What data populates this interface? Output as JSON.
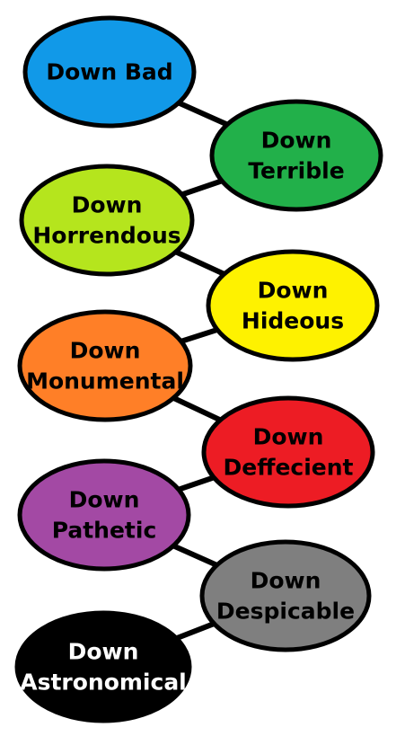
{
  "nodes": [
    {
      "id": "down-bad",
      "lines": [
        "Down Bad"
      ],
      "fill": "#1199e8",
      "text_color": "#000000"
    },
    {
      "id": "down-terrible",
      "lines": [
        "Down",
        "Terrible"
      ],
      "fill": "#22b04a",
      "text_color": "#000000"
    },
    {
      "id": "down-horrendous",
      "lines": [
        "Down",
        "Horrendous"
      ],
      "fill": "#b5e51d",
      "text_color": "#000000"
    },
    {
      "id": "down-hideous",
      "lines": [
        "Down",
        "Hideous"
      ],
      "fill": "#fef200",
      "text_color": "#000000"
    },
    {
      "id": "down-monumental",
      "lines": [
        "Down",
        "Monumental"
      ],
      "fill": "#ff7f27",
      "text_color": "#000000"
    },
    {
      "id": "down-deffecient",
      "lines": [
        "Down",
        "Deffecient"
      ],
      "fill": "#ed1c24",
      "text_color": "#000000"
    },
    {
      "id": "down-pathetic",
      "lines": [
        "Down",
        "Pathetic"
      ],
      "fill": "#a349a4",
      "text_color": "#000000"
    },
    {
      "id": "down-despicable",
      "lines": [
        "Down",
        "Despicable"
      ],
      "fill": "#7f7f7f",
      "text_color": "#000000"
    },
    {
      "id": "down-astronomical",
      "lines": [
        "Down",
        "Astronomical"
      ],
      "fill": "#000000",
      "text_color": "#ffffff"
    }
  ],
  "edges": [
    [
      "down-bad",
      "down-terrible"
    ],
    [
      "down-terrible",
      "down-horrendous"
    ],
    [
      "down-horrendous",
      "down-hideous"
    ],
    [
      "down-hideous",
      "down-monumental"
    ],
    [
      "down-monumental",
      "down-deffecient"
    ],
    [
      "down-deffecient",
      "down-pathetic"
    ],
    [
      "down-pathetic",
      "down-despicable"
    ],
    [
      "down-despicable",
      "down-astronomical"
    ]
  ]
}
